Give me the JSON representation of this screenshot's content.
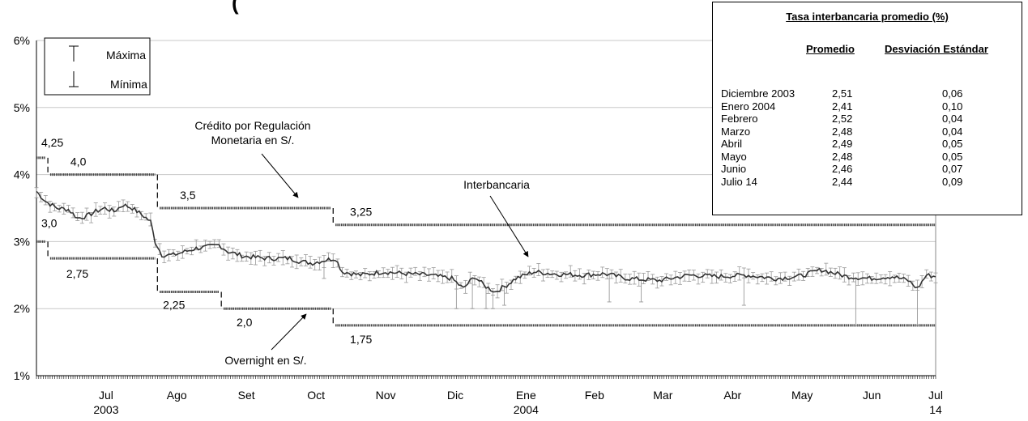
{
  "chart_data": {
    "type": "line",
    "title_partial": "(",
    "y_axis": {
      "ticks": [
        "6%",
        "5%",
        "4%",
        "3%",
        "2%",
        "1%"
      ],
      "ylim": [
        1,
        6
      ],
      "unit": "%"
    },
    "x_axis": {
      "months": [
        {
          "label": "Jul",
          "sub": "2003"
        },
        {
          "label": "Ago",
          "sub": ""
        },
        {
          "label": "Set",
          "sub": ""
        },
        {
          "label": "Oct",
          "sub": ""
        },
        {
          "label": "Nov",
          "sub": ""
        },
        {
          "label": "Dic",
          "sub": ""
        },
        {
          "label": "Ene",
          "sub": "2004"
        },
        {
          "label": "Feb",
          "sub": ""
        },
        {
          "label": "Mar",
          "sub": ""
        },
        {
          "label": "Abr",
          "sub": ""
        },
        {
          "label": "May",
          "sub": ""
        },
        {
          "label": "Jun",
          "sub": ""
        },
        {
          "label": "Jul",
          "sub": "14"
        }
      ]
    },
    "legend": {
      "max_label": "Máxima",
      "min_label": "Mínima",
      "placement": "top-left"
    },
    "corridor": {
      "upper": {
        "name": "Crédito por Regulación Monetaria en S/.",
        "segments": [
          {
            "from": "2003-06-16",
            "to": "2003-06-20",
            "value": 4.25,
            "label": "4,25"
          },
          {
            "from": "2003-06-22",
            "to": "2003-08-07",
            "value": 4.0,
            "label": "4,0"
          },
          {
            "from": "2003-08-09",
            "to": "2003-10-23",
            "value": 3.5,
            "label": "3,5"
          },
          {
            "from": "2003-10-25",
            "to": "2004-07-14",
            "value": 3.25,
            "label": "3,25"
          }
        ]
      },
      "lower": {
        "name": "Overnight en S/.",
        "segments": [
          {
            "from": "2003-06-16",
            "to": "2003-06-20",
            "value": 3.0,
            "label": "3,0"
          },
          {
            "from": "2003-06-22",
            "to": "2003-08-07",
            "value": 2.75,
            "label": "2,75"
          },
          {
            "from": "2003-08-09",
            "to": "2003-09-04",
            "value": 2.25,
            "label": "2,25"
          },
          {
            "from": "2003-09-06",
            "to": "2003-10-23",
            "value": 2.0,
            "label": "2,0"
          },
          {
            "from": "2003-10-25",
            "to": "2004-07-14",
            "value": 1.75,
            "label": "1,75"
          }
        ]
      }
    },
    "interbank": {
      "name": "Interbancaria",
      "start_date": "2003-06-16",
      "end_date": "2004-07-14",
      "anchors": [
        [
          "2003-06-16",
          3.75
        ],
        [
          "2003-06-20",
          3.6
        ],
        [
          "2003-06-25",
          3.5
        ],
        [
          "2003-06-30",
          3.48
        ],
        [
          "2003-07-04",
          3.35
        ],
        [
          "2003-07-08",
          3.38
        ],
        [
          "2003-07-12",
          3.45
        ],
        [
          "2003-07-16",
          3.5
        ],
        [
          "2003-07-20",
          3.45
        ],
        [
          "2003-07-24",
          3.55
        ],
        [
          "2003-07-28",
          3.5
        ],
        [
          "2003-08-02",
          3.38
        ],
        [
          "2003-08-05",
          3.3
        ],
        [
          "2003-08-07",
          3.0
        ],
        [
          "2003-08-10",
          2.8
        ],
        [
          "2003-08-15",
          2.8
        ],
        [
          "2003-08-20",
          2.85
        ],
        [
          "2003-08-25",
          2.9
        ],
        [
          "2003-08-30",
          2.92
        ],
        [
          "2003-09-04",
          2.95
        ],
        [
          "2003-09-08",
          2.85
        ],
        [
          "2003-09-15",
          2.78
        ],
        [
          "2003-09-25",
          2.75
        ],
        [
          "2003-10-05",
          2.75
        ],
        [
          "2003-10-10",
          2.7
        ],
        [
          "2003-10-15",
          2.68
        ],
        [
          "2003-10-20",
          2.72
        ],
        [
          "2003-10-25",
          2.75
        ],
        [
          "2003-10-28",
          2.55
        ],
        [
          "2003-11-05",
          2.5
        ],
        [
          "2003-11-15",
          2.55
        ],
        [
          "2003-11-25",
          2.52
        ],
        [
          "2003-12-05",
          2.5
        ],
        [
          "2003-12-15",
          2.45
        ],
        [
          "2003-12-20",
          2.3
        ],
        [
          "2003-12-25",
          2.48
        ],
        [
          "2003-12-29",
          2.35
        ],
        [
          "2004-01-03",
          2.25
        ],
        [
          "2004-01-08",
          2.35
        ],
        [
          "2004-01-12",
          2.45
        ],
        [
          "2004-01-20",
          2.55
        ],
        [
          "2004-01-28",
          2.52
        ],
        [
          "2004-02-10",
          2.5
        ],
        [
          "2004-02-20",
          2.52
        ],
        [
          "2004-03-01",
          2.45
        ],
        [
          "2004-03-15",
          2.42
        ],
        [
          "2004-03-28",
          2.5
        ],
        [
          "2004-04-10",
          2.48
        ],
        [
          "2004-04-22",
          2.5
        ],
        [
          "2004-05-05",
          2.45
        ],
        [
          "2004-05-15",
          2.48
        ],
        [
          "2004-05-25",
          2.58
        ],
        [
          "2004-06-05",
          2.48
        ],
        [
          "2004-06-15",
          2.45
        ],
        [
          "2004-06-25",
          2.48
        ],
        [
          "2004-07-02",
          2.42
        ],
        [
          "2004-07-06",
          2.3
        ],
        [
          "2004-07-10",
          2.5
        ],
        [
          "2004-07-14",
          2.48
        ]
      ],
      "low_spikes": [
        [
          "2003-12-17",
          2.0
        ],
        [
          "2003-12-24",
          2.0
        ],
        [
          "2003-12-30",
          2.0
        ],
        [
          "2004-01-02",
          2.0
        ],
        [
          "2004-01-07",
          2.05
        ],
        [
          "2004-03-07",
          2.1
        ],
        [
          "2004-04-21",
          2.05
        ],
        [
          "2004-06-09",
          1.75
        ],
        [
          "2004-07-06",
          1.75
        ],
        [
          "2003-10-20",
          2.45
        ],
        [
          "2004-02-22",
          2.1
        ]
      ]
    },
    "annotations": {
      "credito_line1": "Crédito por Regulación",
      "credito_line2": "Monetaria en S/.",
      "interbancaria": "Interbancaria",
      "overnight": "Overnight en S/."
    }
  },
  "stats_table": {
    "title": "Tasa interbancaria promedio (%)",
    "col_promedio": "Promedio",
    "col_desviacion": "Desviación Estándar",
    "rows": [
      {
        "mes": "Diciembre 2003",
        "promedio": "2,51",
        "desviacion": "0,06"
      },
      {
        "mes": "Enero 2004",
        "promedio": "2,41",
        "desviacion": "0,10"
      },
      {
        "mes": "Febrero",
        "promedio": "2,52",
        "desviacion": "0,04"
      },
      {
        "mes": "Marzo",
        "promedio": "2,48",
        "desviacion": "0,04"
      },
      {
        "mes": "Abril",
        "promedio": "2,49",
        "desviacion": "0,05"
      },
      {
        "mes": "Mayo",
        "promedio": "2,48",
        "desviacion": "0,05"
      },
      {
        "mes": "Junio",
        "promedio": "2,46",
        "desviacion": "0,07"
      },
      {
        "mes": "Julio 14",
        "promedio": "2,44",
        "desviacion": "0,09"
      }
    ]
  }
}
